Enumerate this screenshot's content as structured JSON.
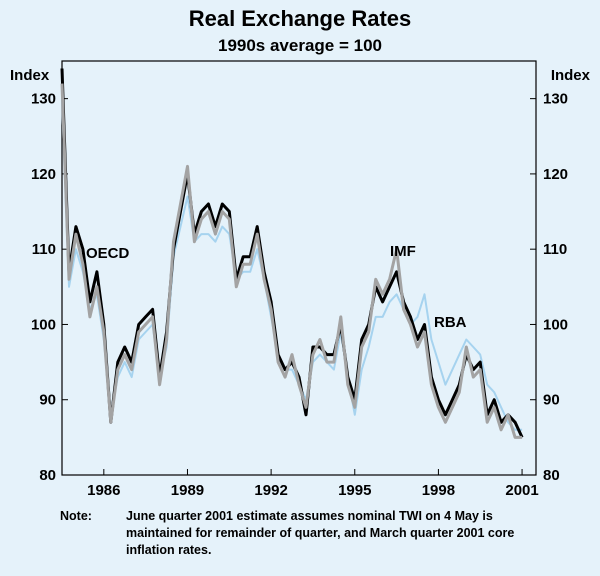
{
  "chart_data": {
    "type": "line",
    "title": "Real Exchange Rates",
    "subtitle": "1990s average = 100",
    "ylabel_left": "Index",
    "ylabel_right": "Index",
    "ylim": [
      80,
      135
    ],
    "yticks": [
      80,
      90,
      100,
      110,
      120,
      130
    ],
    "xlim": [
      1984.5,
      2001.5
    ],
    "xticks": [
      1986,
      1989,
      1992,
      1995,
      1998,
      2001
    ],
    "colors": {
      "OECD": "#000000",
      "IMF": "#a3a3a3",
      "RBA": "#a6d3ef",
      "background": "#e5f2fa"
    },
    "series": [
      {
        "name": "OECD",
        "x": [
          1984.5,
          1984.75,
          1985,
          1985.25,
          1985.5,
          1985.75,
          1986,
          1986.25,
          1986.5,
          1986.75,
          1987,
          1987.25,
          1987.5,
          1987.75,
          1988,
          1988.25,
          1988.5,
          1988.75,
          1989,
          1989.25,
          1989.5,
          1989.75,
          1990,
          1990.25,
          1990.5,
          1990.75,
          1991,
          1991.25,
          1991.5,
          1991.75,
          1992,
          1992.25,
          1992.5,
          1992.75,
          1993,
          1993.25,
          1993.5,
          1993.75,
          1994,
          1994.25,
          1994.5,
          1994.75,
          1995,
          1995.25,
          1995.5,
          1995.75,
          1996,
          1996.25,
          1996.5,
          1996.75,
          1997,
          1997.25,
          1997.5,
          1997.75,
          1998,
          1998.25,
          1998.5,
          1998.75,
          1999,
          1999.25,
          1999.5,
          1999.75,
          2000,
          2000.25,
          2000.5,
          2000.75,
          2001
        ],
        "values": [
          134,
          107,
          113,
          110,
          103,
          107,
          100,
          87,
          95,
          97,
          95,
          100,
          101,
          102,
          93,
          99,
          110,
          115,
          120,
          112,
          115,
          116,
          113,
          116,
          115,
          106,
          109,
          109,
          113,
          107,
          103,
          96,
          94,
          95,
          93,
          88,
          97,
          97,
          96,
          96,
          100,
          93,
          90,
          98,
          100,
          105,
          103,
          105,
          107,
          103,
          101,
          98,
          100,
          93,
          90,
          88,
          90,
          92,
          96,
          94,
          95,
          88,
          90,
          87,
          88,
          87,
          85
        ]
      },
      {
        "name": "IMF",
        "x": [
          1984.5,
          1984.75,
          1985,
          1985.25,
          1985.5,
          1985.75,
          1986,
          1986.25,
          1986.5,
          1986.75,
          1987,
          1987.25,
          1987.5,
          1987.75,
          1988,
          1988.25,
          1988.5,
          1988.75,
          1989,
          1989.25,
          1989.5,
          1989.75,
          1990,
          1990.25,
          1990.5,
          1990.75,
          1991,
          1991.25,
          1991.5,
          1991.75,
          1992,
          1992.25,
          1992.5,
          1992.75,
          1993,
          1993.25,
          1993.5,
          1993.75,
          1994,
          1994.25,
          1994.5,
          1994.75,
          1995,
          1995.25,
          1995.5,
          1995.75,
          1996,
          1996.25,
          1996.5,
          1996.75,
          1997,
          1997.25,
          1997.5,
          1997.75,
          1998,
          1998.25,
          1998.5,
          1998.75,
          1999,
          1999.25,
          1999.5,
          1999.75,
          2000,
          2000.25,
          2000.5,
          2000.75,
          2001
        ],
        "values": [
          132,
          106,
          112,
          108,
          101,
          105,
          99,
          87,
          94,
          96,
          94,
          99,
          100,
          101,
          92,
          98,
          111,
          116,
          121,
          111,
          114,
          115,
          112,
          115,
          114,
          105,
          108,
          108,
          112,
          106,
          102,
          95,
          93,
          96,
          92,
          89,
          96,
          98,
          95,
          95,
          101,
          92,
          89,
          97,
          99,
          106,
          104,
          106,
          110,
          102,
          100,
          97,
          99,
          92,
          89,
          87,
          89,
          91,
          97,
          93,
          94,
          87,
          89,
          86,
          88,
          85,
          85
        ]
      },
      {
        "name": "RBA",
        "x": [
          1984.5,
          1984.75,
          1985,
          1985.25,
          1985.5,
          1985.75,
          1986,
          1986.25,
          1986.5,
          1986.75,
          1987,
          1987.25,
          1987.5,
          1987.75,
          1988,
          1988.25,
          1988.5,
          1988.75,
          1989,
          1989.25,
          1989.5,
          1989.75,
          1990,
          1990.25,
          1990.5,
          1990.75,
          1991,
          1991.25,
          1991.5,
          1991.75,
          1992,
          1992.25,
          1992.5,
          1992.75,
          1993,
          1993.25,
          1993.5,
          1993.75,
          1994,
          1994.25,
          1994.5,
          1994.75,
          1995,
          1995.25,
          1995.5,
          1995.75,
          1996,
          1996.25,
          1996.5,
          1996.75,
          1997,
          1997.25,
          1997.5,
          1997.75,
          1998,
          1998.25,
          1998.5,
          1998.75,
          1999,
          1999.25,
          1999.5,
          1999.75,
          2000,
          2000.25,
          2000.5,
          2000.75,
          2001
        ],
        "values": [
          130,
          105,
          110,
          107,
          102,
          104,
          98,
          88,
          93,
          95,
          93,
          98,
          99,
          100,
          93,
          97,
          109,
          113,
          117,
          111,
          112,
          112,
          111,
          113,
          112,
          106,
          107,
          107,
          110,
          106,
          101,
          96,
          94,
          94,
          92,
          90,
          95,
          96,
          95,
          94,
          99,
          93,
          88,
          94,
          97,
          101,
          101,
          103,
          104,
          102,
          100,
          101,
          104,
          98,
          95,
          92,
          94,
          96,
          98,
          97,
          96,
          92,
          91,
          89,
          87,
          86,
          86
        ]
      }
    ],
    "labels": {
      "oecd": "OECD",
      "imf": "IMF",
      "rba": "RBA"
    }
  },
  "note": {
    "label": "Note:",
    "text": "June quarter 2001 estimate assumes nominal TWI on 4 May is maintained for remainder of quarter, and March quarter 2001 core inflation rates."
  }
}
